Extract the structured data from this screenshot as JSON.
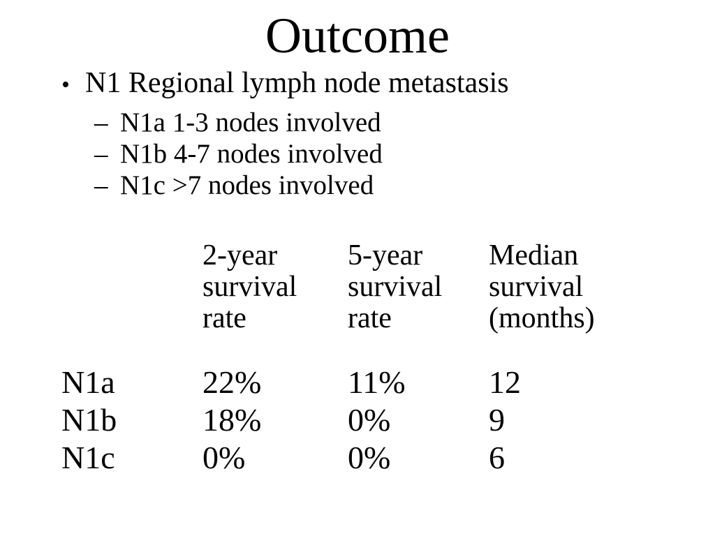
{
  "slide": {
    "title": "Outcome",
    "bullet_glyph": "•",
    "dash_glyph": "–",
    "bullet": "N1 Regional lymph node metastasis",
    "sub_bullets": [
      "N1a 1-3 nodes involved",
      "N1b 4-7 nodes involved",
      "N1c >7 nodes involved"
    ]
  },
  "table": {
    "column_headers": [
      "2-year survival rate",
      "5-year survival rate",
      "Median survival (months)"
    ],
    "rows": [
      {
        "label": "N1a",
        "values": [
          "22%",
          "11%",
          "12"
        ]
      },
      {
        "label": "N1b",
        "values": [
          "18%",
          "0%",
          "9"
        ]
      },
      {
        "label": "N1c",
        "values": [
          "0%",
          "0%",
          "6"
        ]
      }
    ]
  },
  "colors": {
    "background": "#ffffff",
    "text": "#000000"
  }
}
